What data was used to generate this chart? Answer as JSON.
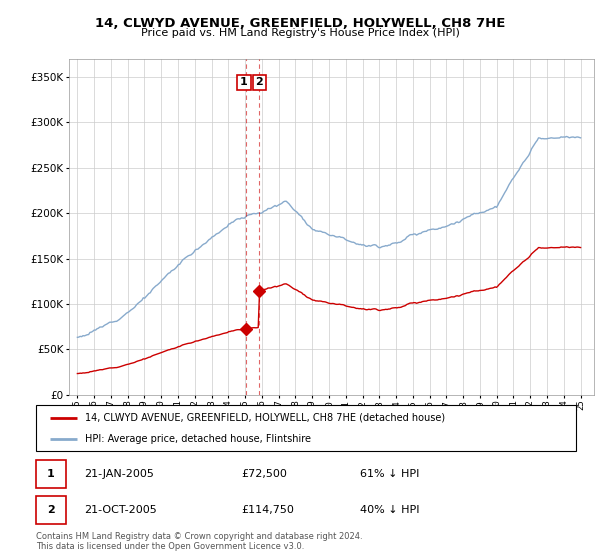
{
  "title": "14, CLWYD AVENUE, GREENFIELD, HOLYWELL, CH8 7HE",
  "subtitle": "Price paid vs. HM Land Registry's House Price Index (HPI)",
  "legend_line1": "14, CLWYD AVENUE, GREENFIELD, HOLYWELL, CH8 7HE (detached house)",
  "legend_line2": "HPI: Average price, detached house, Flintshire",
  "transaction1_date": "21-JAN-2005",
  "transaction1_price": "£72,500",
  "transaction1_hpi": "61% ↓ HPI",
  "transaction2_date": "21-OCT-2005",
  "transaction2_price": "£114,750",
  "transaction2_hpi": "40% ↓ HPI",
  "footer": "Contains HM Land Registry data © Crown copyright and database right 2024.\nThis data is licensed under the Open Government Licence v3.0.",
  "red_color": "#cc0000",
  "blue_color": "#88aacc",
  "ylim_min": 0,
  "ylim_max": 370000,
  "yticks": [
    0,
    50000,
    100000,
    150000,
    200000,
    250000,
    300000,
    350000
  ],
  "ytick_labels": [
    "£0",
    "£50K",
    "£100K",
    "£150K",
    "£200K",
    "£250K",
    "£300K",
    "£350K"
  ],
  "transaction1_x": 2005.05,
  "transaction1_y": 72500,
  "transaction2_x": 2005.8,
  "transaction2_y": 114750,
  "vline1_x": 2005.05,
  "vline2_x": 2005.8,
  "xmin": 1994.5,
  "xmax": 2025.8
}
